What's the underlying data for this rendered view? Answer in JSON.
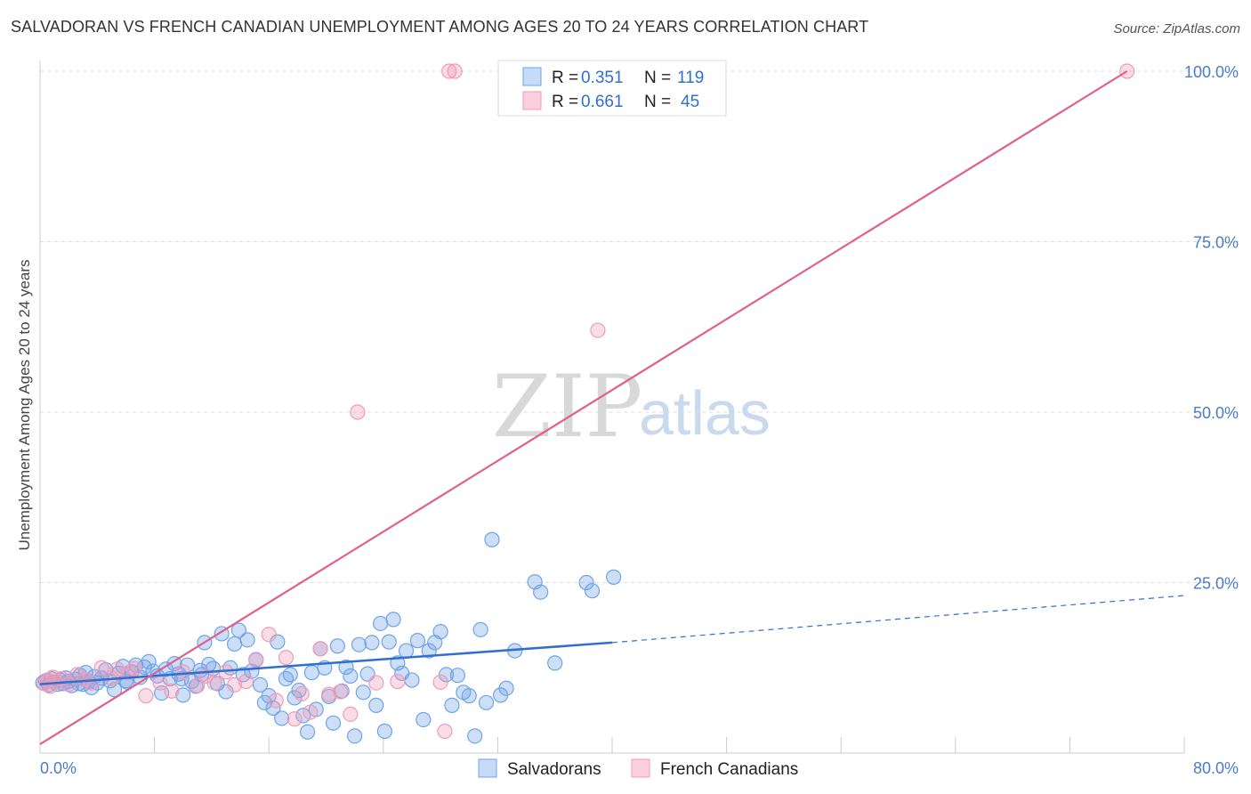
{
  "title": "SALVADORAN VS FRENCH CANADIAN UNEMPLOYMENT AMONG AGES 20 TO 24 YEARS CORRELATION CHART",
  "source": "Source: ZipAtlas.com",
  "watermark": {
    "left": "ZIP",
    "right": "atlas"
  },
  "colors": {
    "blue": "#6fa3e8",
    "blue_line": "#2f6fd0",
    "pink": "#f29ab8",
    "pink_line": "#e0608a",
    "tick": "#4a7cc9"
  },
  "legend_stats": [
    {
      "r_label": "R =",
      "r_value": "0.351",
      "n_label": "N =",
      "n_value": "119"
    },
    {
      "r_label": "R =",
      "r_value": "0.661",
      "n_label": "N =",
      "n_value": "45"
    }
  ],
  "chart_data": {
    "type": "scatter",
    "title": "SALVADORAN VS FRENCH CANADIAN UNEMPLOYMENT AMONG AGES 20 TO 24 YEARS CORRELATION CHART",
    "xlabel": "",
    "ylabel": "Unemployment Among Ages 20 to 24 years",
    "xlim": [
      0,
      80
    ],
    "ylim": [
      0,
      100
    ],
    "x_tick_labels": [
      "0.0%",
      "80.0%"
    ],
    "y_ticks": [
      25,
      50,
      75,
      100
    ],
    "y_tick_labels": [
      "25.0%",
      "50.0%",
      "75.0%",
      "100.0%"
    ],
    "grid": true,
    "legend_position": "bottom",
    "series": [
      {
        "name": "Salvadorans",
        "color": "#6fa3e8",
        "trend": {
          "x": [
            0,
            40
          ],
          "y": [
            10.1,
            16.2
          ],
          "dashed_to": [
            80,
            23.1
          ]
        },
        "points": [
          [
            0.2,
            10.3
          ],
          [
            0.4,
            10.6
          ],
          [
            0.6,
            10.0
          ],
          [
            0.8,
            10.9
          ],
          [
            1.0,
            10.4
          ],
          [
            1.2,
            10.1
          ],
          [
            1.4,
            10.7
          ],
          [
            1.6,
            10.2
          ],
          [
            1.8,
            11.0
          ],
          [
            2.0,
            10.5
          ],
          [
            2.2,
            9.9
          ],
          [
            2.5,
            10.8
          ],
          [
            2.8,
            11.4
          ],
          [
            3.0,
            10.1
          ],
          [
            3.2,
            11.8
          ],
          [
            3.4,
            10.5
          ],
          [
            3.6,
            9.6
          ],
          [
            3.8,
            11.2
          ],
          [
            4.0,
            10.3
          ],
          [
            4.3,
            11.0
          ],
          [
            4.6,
            12.2
          ],
          [
            4.9,
            10.6
          ],
          [
            5.2,
            9.3
          ],
          [
            5.5,
            11.7
          ],
          [
            5.8,
            12.7
          ],
          [
            6.1,
            10.4
          ],
          [
            6.4,
            11.9
          ],
          [
            6.7,
            12.9
          ],
          [
            7.0,
            11.1
          ],
          [
            7.3,
            12.6
          ],
          [
            7.6,
            13.4
          ],
          [
            7.9,
            12.0
          ],
          [
            8.2,
            11.3
          ],
          [
            8.5,
            8.8
          ],
          [
            8.8,
            12.3
          ],
          [
            9.1,
            10.9
          ],
          [
            9.4,
            13.1
          ],
          [
            9.7,
            11.6
          ],
          [
            10.0,
            8.5
          ],
          [
            10.3,
            12.9
          ],
          [
            10.6,
            10.5
          ],
          [
            10.9,
            9.8
          ],
          [
            11.2,
            12.1
          ],
          [
            11.5,
            16.2
          ],
          [
            11.8,
            13.0
          ],
          [
            12.1,
            12.4
          ],
          [
            12.4,
            10.2
          ],
          [
            12.7,
            17.5
          ],
          [
            13.0,
            9.0
          ],
          [
            13.3,
            12.5
          ],
          [
            13.6,
            16.0
          ],
          [
            13.9,
            18.0
          ],
          [
            14.2,
            11.5
          ],
          [
            14.5,
            16.6
          ],
          [
            14.8,
            12.0
          ],
          [
            15.1,
            13.7
          ],
          [
            15.4,
            10.0
          ],
          [
            15.7,
            7.4
          ],
          [
            16.0,
            8.4
          ],
          [
            16.3,
            6.6
          ],
          [
            16.6,
            16.3
          ],
          [
            16.9,
            5.1
          ],
          [
            17.2,
            10.9
          ],
          [
            17.5,
            11.5
          ],
          [
            17.8,
            8.1
          ],
          [
            18.1,
            9.2
          ],
          [
            18.4,
            5.5
          ],
          [
            18.7,
            3.1
          ],
          [
            19.0,
            11.8
          ],
          [
            19.3,
            6.4
          ],
          [
            19.6,
            15.3
          ],
          [
            19.9,
            12.5
          ],
          [
            20.2,
            8.3
          ],
          [
            20.5,
            4.4
          ],
          [
            20.8,
            15.7
          ],
          [
            21.1,
            9.1
          ],
          [
            21.4,
            12.6
          ],
          [
            21.7,
            11.3
          ],
          [
            22.0,
            2.5
          ],
          [
            22.3,
            15.9
          ],
          [
            22.6,
            8.9
          ],
          [
            22.9,
            11.6
          ],
          [
            23.2,
            16.2
          ],
          [
            23.5,
            7.0
          ],
          [
            23.8,
            19.0
          ],
          [
            24.1,
            3.2
          ],
          [
            24.4,
            16.3
          ],
          [
            24.7,
            19.6
          ],
          [
            25.0,
            13.2
          ],
          [
            25.3,
            11.7
          ],
          [
            25.6,
            15.0
          ],
          [
            26.0,
            10.7
          ],
          [
            26.4,
            16.5
          ],
          [
            26.8,
            4.9
          ],
          [
            27.2,
            15.0
          ],
          [
            27.6,
            16.2
          ],
          [
            28.0,
            17.8
          ],
          [
            28.4,
            11.5
          ],
          [
            28.8,
            7.0
          ],
          [
            29.2,
            11.4
          ],
          [
            29.6,
            8.9
          ],
          [
            30.0,
            8.4
          ],
          [
            30.4,
            2.5
          ],
          [
            30.8,
            18.1
          ],
          [
            31.2,
            7.4
          ],
          [
            31.6,
            31.3
          ],
          [
            32.2,
            8.5
          ],
          [
            32.6,
            9.5
          ],
          [
            33.2,
            15.0
          ],
          [
            34.6,
            25.1
          ],
          [
            35.0,
            23.6
          ],
          [
            36.0,
            13.2
          ],
          [
            38.2,
            25.0
          ],
          [
            38.6,
            23.8
          ],
          [
            40.1,
            25.8
          ],
          [
            6.0,
            10.6
          ],
          [
            2.7,
            10.2
          ],
          [
            9.9,
            10.9
          ],
          [
            11.3,
            11.5
          ]
        ]
      },
      {
        "name": "French Canadians",
        "color": "#f29ab8",
        "trend": {
          "x": [
            0,
            76
          ],
          "y": [
            1.3,
            100
          ]
        },
        "points": [
          [
            0.3,
            10.2
          ],
          [
            0.5,
            10.7
          ],
          [
            0.7,
            9.8
          ],
          [
            0.9,
            11.1
          ],
          [
            1.1,
            10.4
          ],
          [
            1.5,
            10.9
          ],
          [
            2.0,
            10.1
          ],
          [
            2.6,
            11.5
          ],
          [
            3.1,
            10.8
          ],
          [
            3.6,
            10.3
          ],
          [
            4.3,
            12.5
          ],
          [
            5.0,
            11.0
          ],
          [
            5.4,
            12.3
          ],
          [
            6.2,
            11.8
          ],
          [
            6.6,
            12.4
          ],
          [
            7.4,
            8.4
          ],
          [
            8.4,
            10.3
          ],
          [
            9.2,
            9.1
          ],
          [
            10.0,
            11.9
          ],
          [
            11.0,
            9.9
          ],
          [
            11.6,
            11.3
          ],
          [
            12.2,
            10.3
          ],
          [
            13.0,
            11.9
          ],
          [
            13.6,
            10.0
          ],
          [
            14.4,
            10.5
          ],
          [
            15.1,
            13.6
          ],
          [
            16.0,
            17.4
          ],
          [
            16.5,
            7.7
          ],
          [
            17.2,
            14.0
          ],
          [
            17.8,
            5.0
          ],
          [
            18.3,
            8.7
          ],
          [
            18.9,
            6.0
          ],
          [
            19.6,
            15.3
          ],
          [
            20.2,
            8.6
          ],
          [
            21.0,
            9.0
          ],
          [
            21.7,
            5.7
          ],
          [
            22.2,
            50.0
          ],
          [
            23.5,
            10.3
          ],
          [
            25.0,
            10.5
          ],
          [
            28.0,
            10.4
          ],
          [
            28.3,
            3.2
          ],
          [
            28.6,
            100.0
          ],
          [
            29.0,
            100.0
          ],
          [
            39.0,
            62.0
          ],
          [
            76.0,
            100.0
          ]
        ]
      }
    ]
  }
}
